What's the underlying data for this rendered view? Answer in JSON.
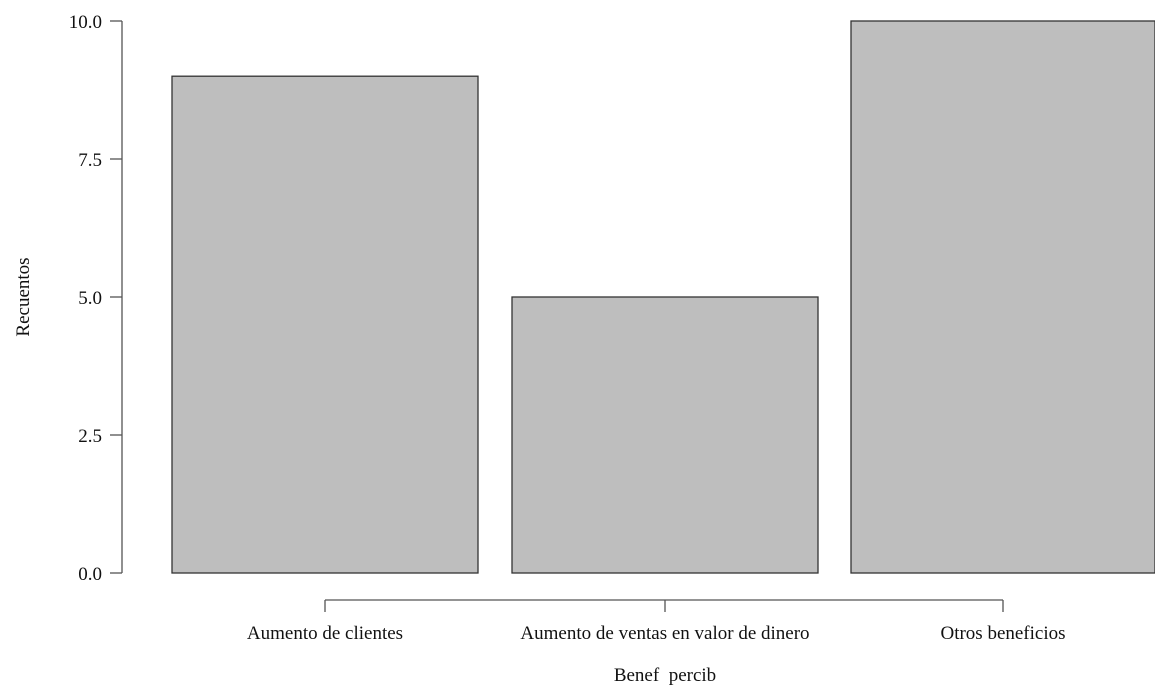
{
  "chart_data": {
    "type": "bar",
    "categories": [
      "Aumento de clientes",
      "Aumento de ventas en valor de dinero",
      "Otros beneficios"
    ],
    "values": [
      9,
      5,
      10
    ],
    "title": "",
    "xlabel": "Benef  percib",
    "ylabel": "Recuentos",
    "ylim": [
      0,
      10
    ],
    "yticks": [
      "0.0",
      "2.5",
      "5.0",
      "7.5",
      "10.0"
    ],
    "ytick_values": [
      0,
      2.5,
      5,
      7.5,
      10
    ],
    "bar_color": "#bebebe",
    "grid": false,
    "legend": "none"
  }
}
